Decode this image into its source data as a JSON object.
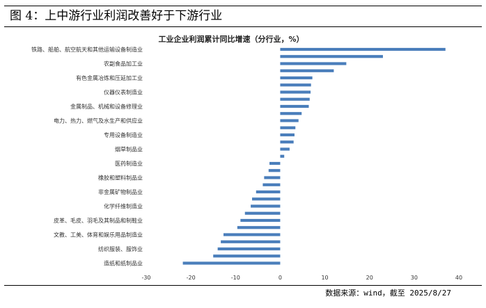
{
  "header": {
    "figure_title": "图 4：上中游行业利润改善好于下游行业"
  },
  "footer": {
    "source": "数据来源：wind，截至 2025/8/27"
  },
  "chart_data": {
    "type": "bar",
    "orientation": "horizontal",
    "title": "工业企业利润累计同比增速（分行业，%）",
    "xlim": [
      -30,
      40
    ],
    "xticks": [
      -30,
      -20,
      -10,
      0,
      10,
      20,
      30,
      40
    ],
    "grid": false,
    "bar_color": "#4a7ebb",
    "categories": [
      "铁路、船舶、航空航天和其他运输设备制造业",
      "",
      "农副食品加工业",
      "",
      "有色金属冶炼和压延加工业",
      "",
      "仪器仪表制造业",
      "",
      "金属制品、机械和设备修理业",
      "",
      "电力、热力、燃气及水生产和供应业",
      "",
      "专用设备制造业",
      "",
      "烟草制品业",
      "",
      "医药制造业",
      "",
      "橡胶和塑料制品业",
      "",
      "非金属矿物制品业",
      "",
      "化学纤维制造业",
      "",
      "皮革、毛皮、羽毛及其制品和制鞋业",
      "",
      "文教、工美、体育和娱乐用品制造业",
      "",
      "纺织服装、服饰业",
      "",
      "造纸和纸制品业"
    ],
    "values": [
      37.0,
      23.0,
      14.8,
      12.0,
      7.2,
      6.9,
      6.8,
      6.6,
      6.4,
      4.8,
      4.1,
      3.4,
      3.2,
      3.0,
      2.1,
      0.9,
      -2.4,
      -2.6,
      -3.6,
      -3.9,
      -5.4,
      -6.3,
      -6.6,
      -7.9,
      -8.9,
      -9.6,
      -12.7,
      -13.3,
      -14.0,
      -15.0,
      -21.8
    ]
  }
}
